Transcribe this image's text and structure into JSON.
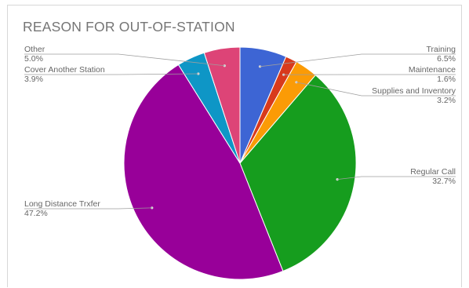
{
  "chart_data": {
    "type": "pie",
    "title": "REASON FOR OUT-OF-STATION",
    "start_angle_deg": 0,
    "direction": "clockwise",
    "slices": [
      {
        "label": "Training",
        "value": 6.5,
        "display": "6.5%",
        "color": "#3d65d4"
      },
      {
        "label": "Maintenance",
        "value": 1.6,
        "display": "1.6%",
        "color": "#d83a1c"
      },
      {
        "label": "Supplies and Inventory",
        "value": 3.2,
        "display": "3.2%",
        "color": "#fb9b06"
      },
      {
        "label": "Regular Call",
        "value": 32.7,
        "display": "32.7%",
        "color": "#169d1e"
      },
      {
        "label": "Long Distance Trxfer",
        "value": 47.2,
        "display": "47.2%",
        "color": "#980099"
      },
      {
        "label": "Cover Another Station",
        "value": 3.9,
        "display": "3.9%",
        "color": "#0e96c6"
      },
      {
        "label": "Other",
        "value": 5.0,
        "display": "5.0%",
        "color": "#dd4477"
      }
    ]
  }
}
